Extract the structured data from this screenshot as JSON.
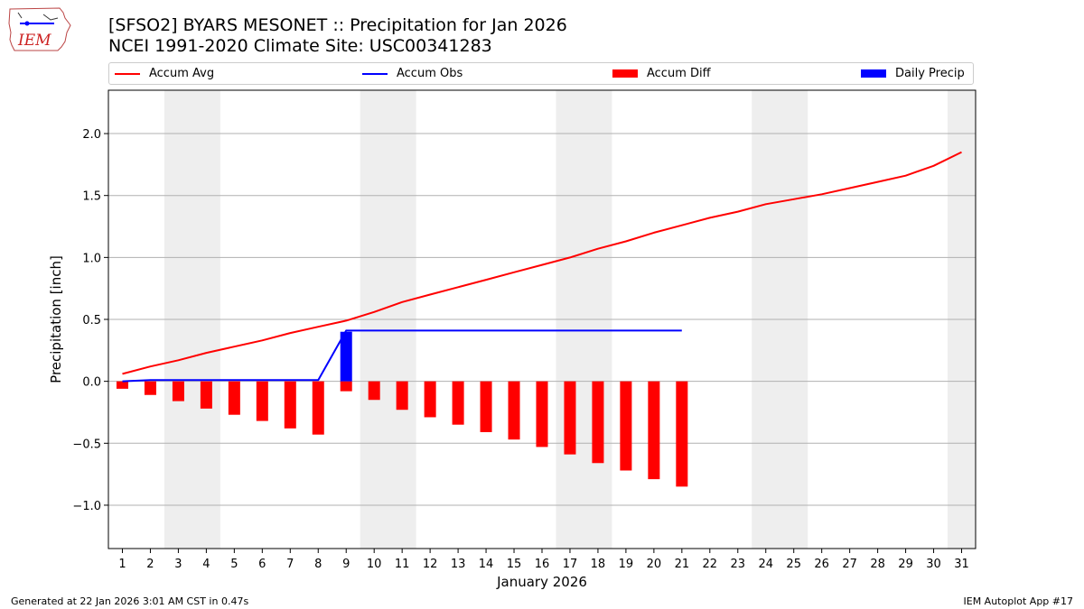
{
  "header": {
    "title_line1": "[SFSO2] BYARS MESONET :: Precipitation for Jan 2026",
    "title_line2": "NCEI 1991-2020 Climate Site: USC00341283"
  },
  "logo": {
    "text": "IEM"
  },
  "footer": {
    "generated": "Generated at 22 Jan 2026 3:01 AM CST in 0.47s",
    "app": "IEM Autoplot App #17"
  },
  "colors": {
    "accum_avg": "#ff0000",
    "accum_obs": "#0000ff",
    "accum_diff": "#ff0000",
    "daily_precip": "#0000ff",
    "weekend_shade": "#eeeeee",
    "grid": "#b0b0b0"
  },
  "chart_data": {
    "type": "bar+line",
    "xlabel": "January 2026",
    "ylabel": "Precipitation [inch]",
    "xlim": [
      0.5,
      31.5
    ],
    "ylim": [
      -1.35,
      2.35
    ],
    "yticks": [
      -1.0,
      -0.5,
      0.0,
      0.5,
      1.0,
      1.5,
      2.0
    ],
    "ytick_labels": [
      "−1.0",
      "−0.5",
      "0.0",
      "0.5",
      "1.0",
      "1.5",
      "2.0"
    ],
    "days": [
      1,
      2,
      3,
      4,
      5,
      6,
      7,
      8,
      9,
      10,
      11,
      12,
      13,
      14,
      15,
      16,
      17,
      18,
      19,
      20,
      21,
      22,
      23,
      24,
      25,
      26,
      27,
      28,
      29,
      30,
      31
    ],
    "weekend_spans": [
      [
        2.5,
        4.5
      ],
      [
        9.5,
        11.5
      ],
      [
        16.5,
        18.5
      ],
      [
        23.5,
        25.5
      ],
      [
        30.5,
        31.5
      ]
    ],
    "legend": [
      {
        "label": "Accum Avg",
        "kind": "line",
        "color": "#ff0000"
      },
      {
        "label": "Accum Obs",
        "kind": "line",
        "color": "#0000ff"
      },
      {
        "label": "Accum Diff",
        "kind": "bar",
        "color": "#ff0000"
      },
      {
        "label": "Daily Precip",
        "kind": "bar",
        "color": "#0000ff"
      }
    ],
    "series": [
      {
        "name": "Accum Avg",
        "kind": "line",
        "x": [
          1,
          2,
          3,
          4,
          5,
          6,
          7,
          8,
          9,
          10,
          11,
          12,
          13,
          14,
          15,
          16,
          17,
          18,
          19,
          20,
          21,
          22,
          23,
          24,
          25,
          26,
          27,
          28,
          29,
          30,
          31
        ],
        "values": [
          0.06,
          0.12,
          0.17,
          0.23,
          0.28,
          0.33,
          0.39,
          0.44,
          0.49,
          0.56,
          0.64,
          0.7,
          0.76,
          0.82,
          0.88,
          0.94,
          1.0,
          1.07,
          1.13,
          1.2,
          1.26,
          1.32,
          1.37,
          1.43,
          1.47,
          1.51,
          1.56,
          1.61,
          1.66,
          1.74,
          1.85
        ]
      },
      {
        "name": "Accum Obs",
        "kind": "line",
        "x": [
          1,
          2,
          3,
          4,
          5,
          6,
          7,
          8,
          9,
          10,
          11,
          12,
          13,
          14,
          15,
          16,
          17,
          18,
          19,
          20,
          21
        ],
        "values": [
          0.0,
          0.01,
          0.01,
          0.01,
          0.01,
          0.01,
          0.01,
          0.01,
          0.41,
          0.41,
          0.41,
          0.41,
          0.41,
          0.41,
          0.41,
          0.41,
          0.41,
          0.41,
          0.41,
          0.41,
          0.41
        ]
      },
      {
        "name": "Accum Diff",
        "kind": "bar",
        "x": [
          1,
          2,
          3,
          4,
          5,
          6,
          7,
          8,
          9,
          10,
          11,
          12,
          13,
          14,
          15,
          16,
          17,
          18,
          19,
          20,
          21
        ],
        "values": [
          -0.06,
          -0.11,
          -0.16,
          -0.22,
          -0.27,
          -0.32,
          -0.38,
          -0.43,
          -0.08,
          -0.15,
          -0.23,
          -0.29,
          -0.35,
          -0.41,
          -0.47,
          -0.53,
          -0.59,
          -0.66,
          -0.72,
          -0.79,
          -0.85
        ]
      },
      {
        "name": "Daily Precip",
        "kind": "bar",
        "x": [
          9
        ],
        "values": [
          0.4
        ]
      }
    ]
  }
}
